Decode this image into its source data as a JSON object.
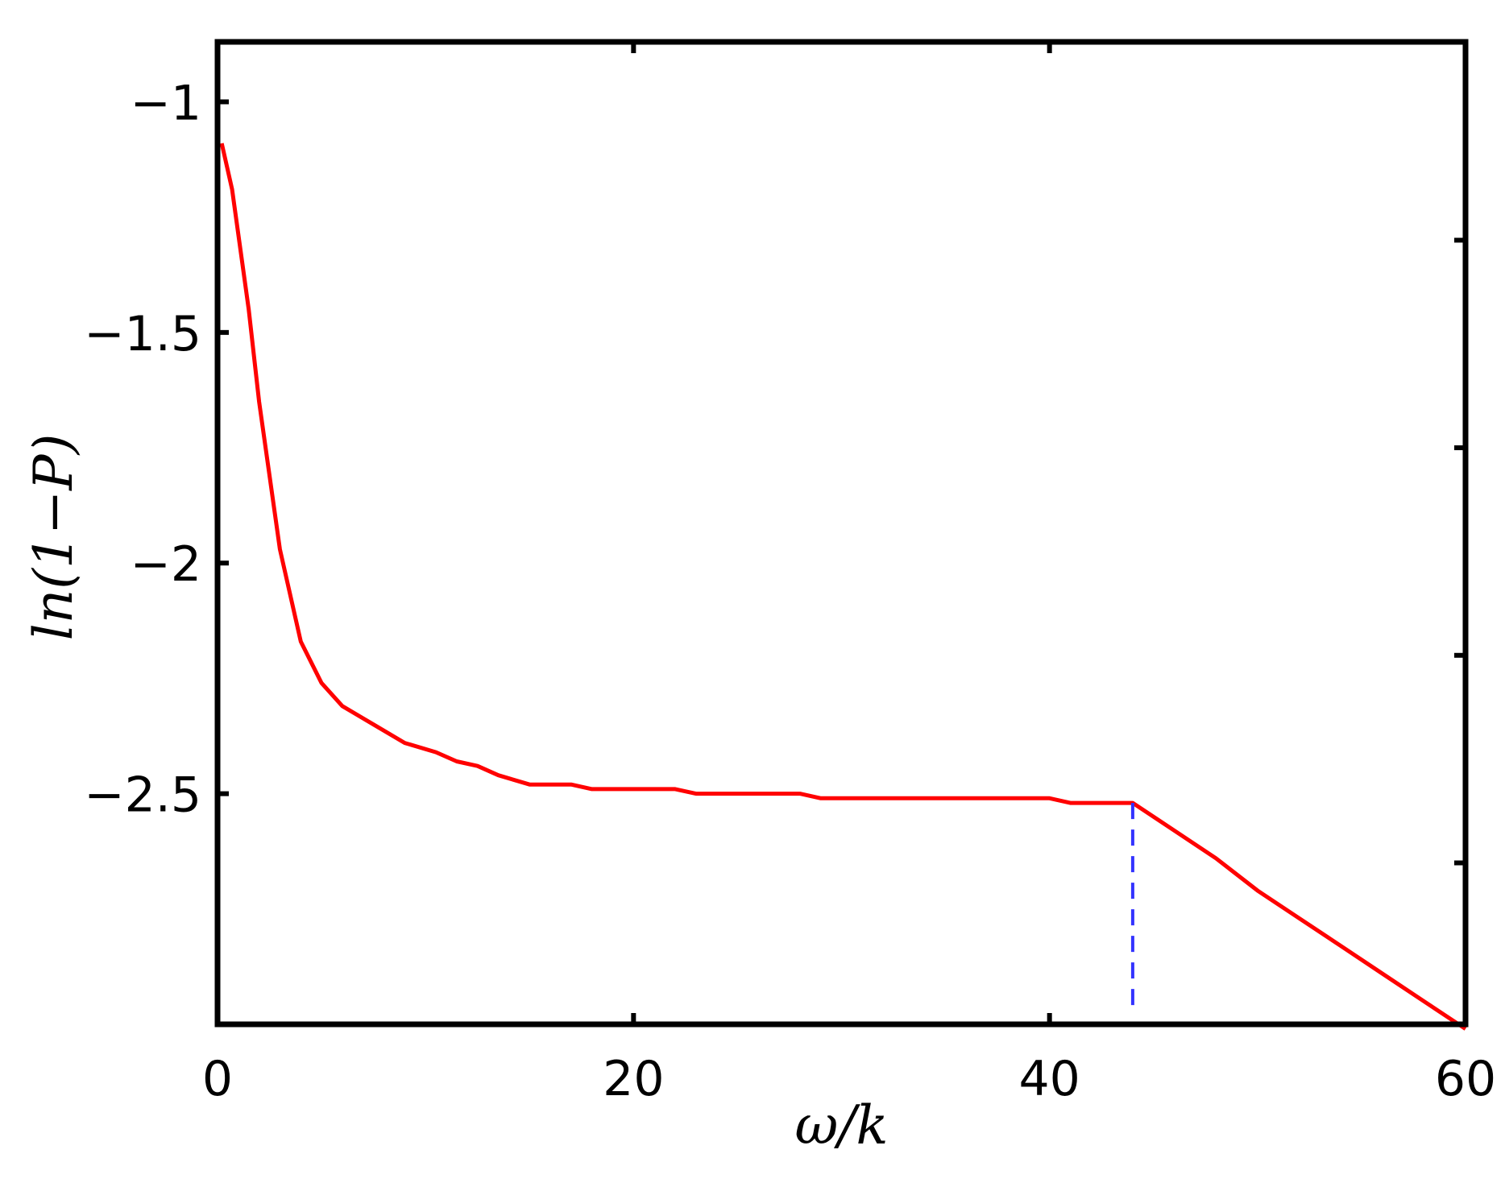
{
  "chart_data": {
    "type": "line",
    "title": "",
    "xlabel": "ω/k",
    "ylabel": "ln(1−P)",
    "xlim": [
      0,
      60
    ],
    "ylim": [
      -3.0,
      -0.87
    ],
    "xticks": [
      0,
      20,
      40,
      60
    ],
    "xtick_labels": [
      "0",
      "20",
      "40",
      "60"
    ],
    "yticks": [
      -1.0,
      -1.5,
      -2.0,
      -2.5
    ],
    "ytick_labels": [
      "−1",
      "−1.5",
      "−2",
      "−2.5"
    ],
    "y_minor_ticks_right": [
      -1.3,
      -1.75,
      -2.2,
      -2.65
    ],
    "grid": false,
    "legend": "none",
    "series": [
      {
        "color": "#ff0000",
        "style": "solid",
        "x": [
          0.2,
          0.7,
          1.5,
          2.0,
          3.0,
          4.0,
          5.0,
          6.0,
          7.5,
          9.0,
          10.5,
          11.5,
          12.5,
          13.5,
          15.0,
          17.0,
          18.0,
          19.0,
          20.0,
          21.0,
          22.0,
          23.0,
          24.0,
          25.0,
          26.0,
          27.0,
          28.0,
          29.0,
          30.0,
          31.0,
          32.0,
          33.0,
          34.0,
          35.0,
          36.0,
          37.0,
          38.0,
          39.0,
          40.0,
          41.0,
          42.0,
          43.0,
          44.0,
          46.0,
          48.0,
          50.0,
          52.0,
          54.0,
          56.0,
          58.0,
          60.0
        ],
        "y": [
          -1.09,
          -1.19,
          -1.45,
          -1.65,
          -1.97,
          -2.17,
          -2.26,
          -2.31,
          -2.35,
          -2.39,
          -2.41,
          -2.43,
          -2.44,
          -2.46,
          -2.48,
          -2.48,
          -2.49,
          -2.49,
          -2.49,
          -2.49,
          -2.49,
          -2.5,
          -2.5,
          -2.5,
          -2.5,
          -2.5,
          -2.5,
          -2.51,
          -2.51,
          -2.51,
          -2.51,
          -2.51,
          -2.51,
          -2.51,
          -2.51,
          -2.51,
          -2.51,
          -2.51,
          -2.51,
          -2.52,
          -2.52,
          -2.52,
          -2.52,
          -2.58,
          -2.64,
          -2.71,
          -2.77,
          -2.83,
          -2.89,
          -2.95,
          -3.01
        ]
      },
      {
        "color": "#3333ff",
        "style": "dashed",
        "x": [
          44.0,
          44.0
        ],
        "y": [
          -2.52,
          -2.98
        ]
      }
    ]
  }
}
